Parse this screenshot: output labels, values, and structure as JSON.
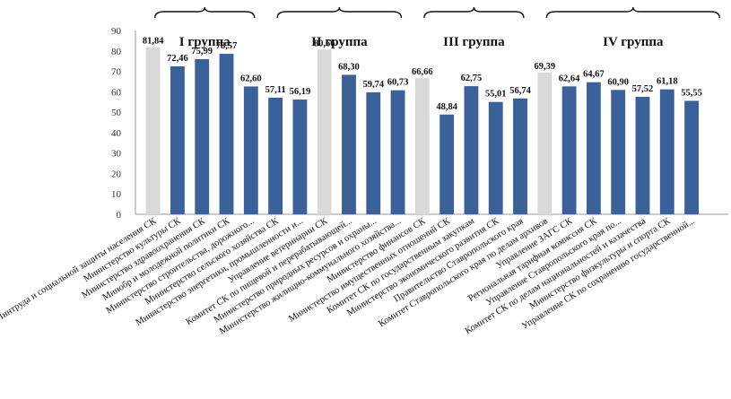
{
  "chart_data": {
    "type": "bar",
    "ylim": [
      0,
      90
    ],
    "yticks": [
      "0",
      "10",
      "20",
      "30",
      "40",
      "50",
      "60",
      "70",
      "80",
      "90"
    ],
    "grid": false,
    "groups": [
      {
        "label": "I группа",
        "start": 0,
        "end": 4
      },
      {
        "label": "II группа",
        "start": 5,
        "end": 10
      },
      {
        "label": "III группа",
        "start": 11,
        "end": 15
      },
      {
        "label": "IV группа",
        "start": 16,
        "end": 23
      }
    ],
    "categories": [
      "Минтруда и социальной защиты населения СК",
      "Министерство культуры СК",
      "Министерство здравоохранения СК",
      "Минобр и молодежной политики СК",
      "Министерство строительства, дорожного...",
      "Министерство сельского хозяйства СК",
      "Министерство энергетики, промышленности и...",
      "Управление ветеринарии СК",
      "Комитет СК по пищевой и перерабатывающей...",
      "Министерство природных ресурсов и охраны...",
      "Министерство жилищно-коммунального хозяйства...",
      "Министерство финансов СК",
      "Министерство имущественных отношений СК",
      "Комитет СК по государственным закупкам",
      "Министерство экономического развития СК",
      "Правительство Ставропольского края",
      "Комитет Ставропольского края по делам архивов",
      "Управление ЗАГС СК",
      "Региональная тарифная комиссия СК",
      "Управление Ставропольского края по...",
      "Комитет СК по делам национальностей и казачества",
      "Министерство физкультуры и спорта СК",
      "Управление СК по сохранению государственной...",
      ""
    ],
    "values": [
      81.84,
      72.46,
      75.99,
      78.57,
      62.6,
      57.11,
      56.19,
      80.66,
      68.3,
      59.74,
      60.73,
      66.66,
      48.84,
      62.75,
      55.01,
      56.74,
      69.39,
      62.64,
      64.67,
      60.9,
      57.52,
      61.18,
      55.55,
      0
    ],
    "value_labels": [
      "81,84",
      "72,46",
      "75,99",
      "78,57",
      "62,60",
      "57,11",
      "56,19",
      "80,66",
      "68,30",
      "59,74",
      "60,73",
      "66,66",
      "48,84",
      "62,75",
      "55,01",
      "56,74",
      "69,39",
      "62,64",
      "64,67",
      "60,90",
      "57,52",
      "61,18",
      "55,55",
      ""
    ],
    "highlighted": [
      0,
      7,
      11,
      16
    ],
    "colors": {
      "bar": "#3a6199",
      "highlight": "#d9d9d9",
      "axis": "#999999"
    }
  }
}
